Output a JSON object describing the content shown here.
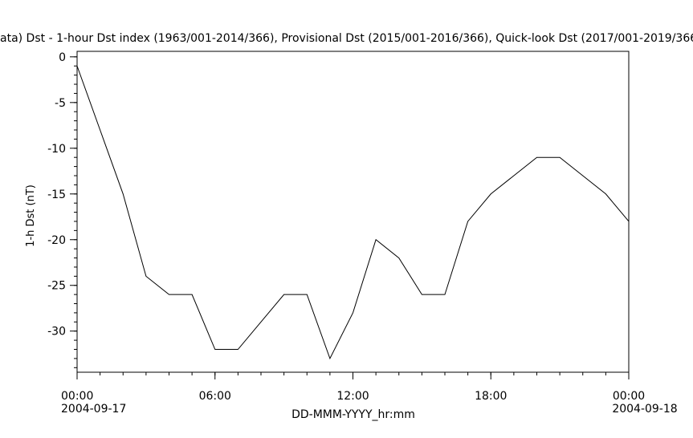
{
  "chart_data": {
    "type": "line",
    "title": "ata)  Dst - 1-hour Dst index (1963/001-2014/366), Provisional Dst (2015/001-2016/366), Quick-look Dst (2017/001-2019/366",
    "x_label": "DD-MMM-YYYY_hr:mm",
    "y_label": "1-h Dst (nT)",
    "x": [
      0,
      1,
      2,
      3,
      4,
      5,
      6,
      7,
      8,
      9,
      10,
      11,
      12,
      13,
      14,
      15,
      16,
      17,
      18,
      19,
      20,
      21,
      22,
      23,
      24
    ],
    "series": [
      {
        "color": "#000000",
        "values": [
          -1,
          -8,
          -15,
          -24,
          -26,
          -26,
          -32,
          -32,
          -29,
          -26,
          -26,
          -33,
          -28,
          -20,
          -22,
          -26,
          -26,
          -18,
          -15,
          -13,
          -11,
          -11,
          -13,
          -15,
          -18
        ]
      }
    ],
    "xlim": [
      0,
      24
    ],
    "ylim": [
      -34.5,
      0.6
    ],
    "xticks": [
      {
        "value": 0,
        "label": "00:00"
      },
      {
        "value": 6,
        "label": "06:00"
      },
      {
        "value": 12,
        "label": "12:00"
      },
      {
        "value": 18,
        "label": "18:00"
      },
      {
        "value": 24,
        "label": "00:00"
      }
    ],
    "xtick_dates": [
      "2004-09-17",
      null,
      null,
      null,
      "2004-09-18"
    ],
    "yticks": [
      0,
      -5,
      -10,
      -15,
      -20,
      -25,
      -30
    ]
  }
}
